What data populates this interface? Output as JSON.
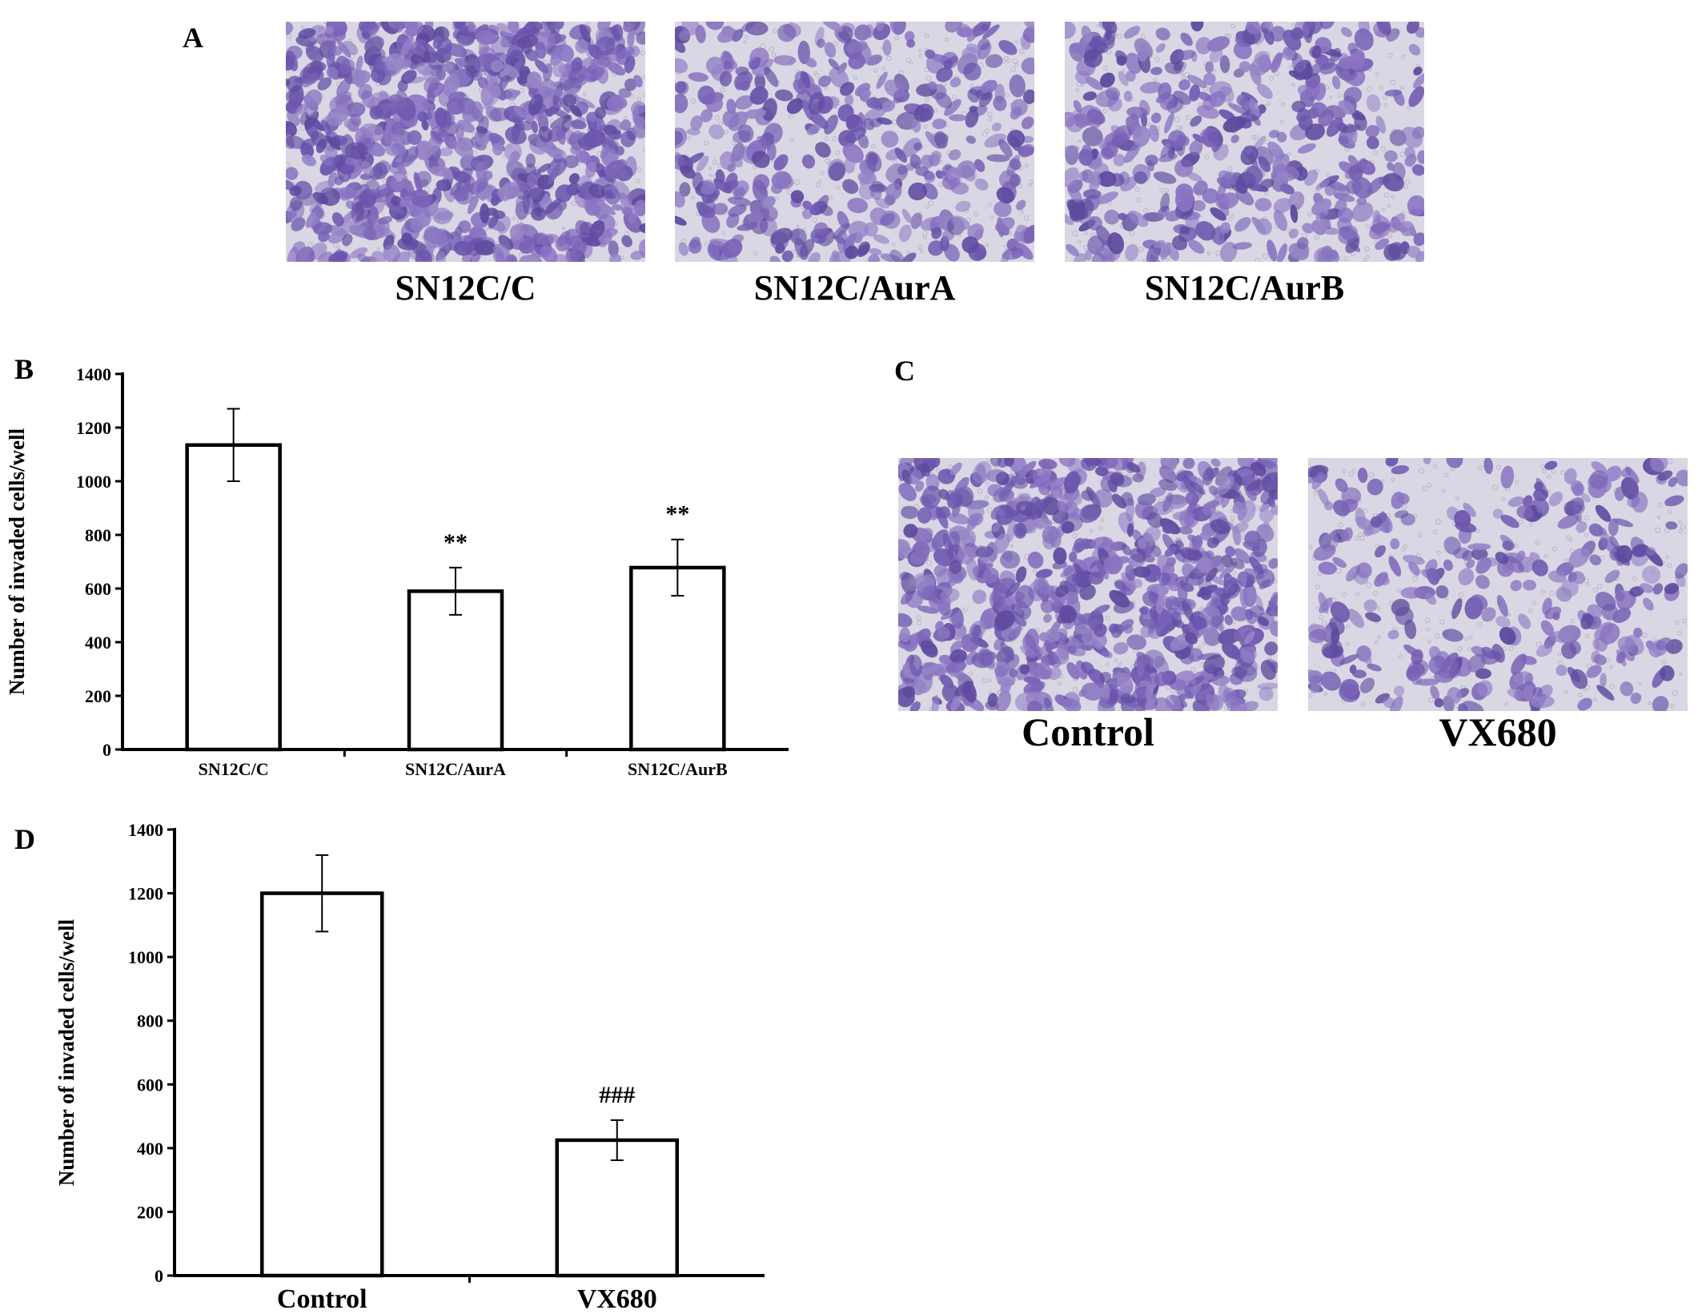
{
  "panels": {
    "a": {
      "letter": "A",
      "images": [
        {
          "caption": "SN12C/C",
          "density": 0.9
        },
        {
          "caption": "SN12C/AurA",
          "density": 0.45
        },
        {
          "caption": "SN12C/AurB",
          "density": 0.5
        }
      ]
    },
    "b": {
      "letter": "B"
    },
    "c": {
      "letter": "C",
      "images": [
        {
          "caption": "Control",
          "density": 0.9
        },
        {
          "caption": "VX680",
          "density": 0.35
        }
      ]
    },
    "d": {
      "letter": "D"
    }
  },
  "colors": {
    "stain": "#7a63b6",
    "background": "#d9d7e3",
    "bar_fill": "#ffffff",
    "line": "#000000"
  },
  "chart_data": [
    {
      "type": "bar",
      "panel": "B",
      "categories": [
        "SN12C/C",
        "SN12C/AurA",
        "SN12C/AurB"
      ],
      "values": [
        1135,
        590,
        678
      ],
      "errors": [
        135,
        88,
        105
      ],
      "annotations": [
        "",
        "**",
        "**"
      ],
      "title": "",
      "xlabel": "",
      "ylabel": "Number of invaded cells/well",
      "ylim": [
        0,
        1400
      ],
      "yticks": [
        0,
        200,
        400,
        600,
        800,
        1000,
        1200,
        1400
      ],
      "grid": false
    },
    {
      "type": "bar",
      "panel": "D",
      "categories": [
        "Control",
        "VX680"
      ],
      "values": [
        1200,
        425
      ],
      "errors": [
        120,
        63
      ],
      "annotations": [
        "",
        "###"
      ],
      "title": "",
      "xlabel": "",
      "ylabel": "Number of invaded cells/well",
      "ylim": [
        0,
        1400
      ],
      "yticks": [
        0,
        200,
        400,
        600,
        800,
        1000,
        1200,
        1400
      ],
      "grid": false
    }
  ]
}
